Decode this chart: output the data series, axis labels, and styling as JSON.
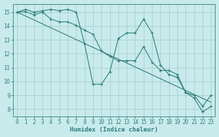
{
  "line1_x": [
    0,
    1,
    2,
    3,
    4,
    5,
    6,
    7,
    8,
    9,
    10,
    11,
    12,
    13,
    14,
    15,
    16,
    17,
    18,
    19,
    20,
    21,
    22,
    23
  ],
  "line1_y": [
    15.0,
    15.2,
    15.0,
    15.1,
    15.2,
    15.1,
    15.2,
    15.0,
    12.7,
    9.8,
    9.8,
    10.7,
    13.1,
    13.5,
    13.5,
    14.5,
    13.5,
    11.2,
    10.5,
    10.3,
    9.2,
    8.8,
    7.8,
    8.2
  ],
  "line2_x": [
    0,
    23
  ],
  "line2_y": [
    15.0,
    8.5
  ],
  "line3_x": [
    0,
    1,
    2,
    3,
    4,
    5,
    6,
    7,
    8,
    9,
    10,
    11,
    12,
    13,
    14,
    15,
    16,
    17,
    18,
    19,
    20,
    21,
    22,
    23
  ],
  "line3_y": [
    15.0,
    15.05,
    14.8,
    15.0,
    14.5,
    14.3,
    14.3,
    14.05,
    13.7,
    13.4,
    12.2,
    11.8,
    11.5,
    11.5,
    11.5,
    12.5,
    11.4,
    10.8,
    10.8,
    10.5,
    9.2,
    9.0,
    8.2,
    9.0
  ],
  "line_color": "#2e7d7d",
  "bg_color": "#c8eaea",
  "grid_color": "#a8cece",
  "xlabel": "Humidex (Indice chaleur)",
  "ylim": [
    7.5,
    15.6
  ],
  "xlim": [
    -0.5,
    23.5
  ],
  "yticks": [
    8,
    9,
    10,
    11,
    12,
    13,
    14,
    15
  ],
  "xticks": [
    0,
    1,
    2,
    3,
    4,
    5,
    6,
    7,
    8,
    9,
    10,
    11,
    12,
    13,
    14,
    15,
    16,
    17,
    18,
    19,
    20,
    21,
    22,
    23
  ]
}
